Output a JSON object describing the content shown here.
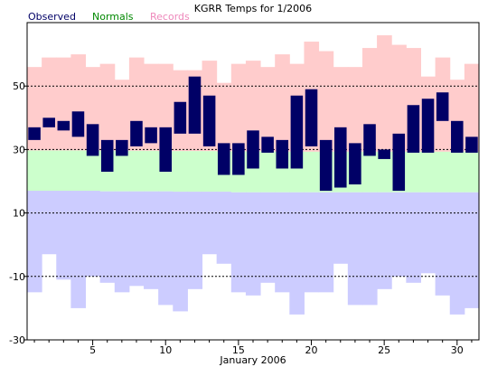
{
  "chart_data": {
    "type": "bar",
    "title": "KGRR Temps for 1/2006",
    "legend": [
      {
        "name": "Observed",
        "color": "#000066"
      },
      {
        "name": "Normals",
        "color": "#008800"
      },
      {
        "name": "Records",
        "color": "#ee88bb"
      }
    ],
    "xlabel": "January 2006",
    "ylabel": "",
    "ylim": [
      -30,
      70
    ],
    "xlim": [
      0.5,
      31.5
    ],
    "x_ticks": [
      5,
      10,
      15,
      20,
      25,
      30
    ],
    "y_ticks": [
      -30,
      -10,
      10,
      30,
      50
    ],
    "gridlines_y": [
      -10,
      10,
      30,
      50
    ],
    "colors": {
      "observed": "#000066",
      "normal_fill": "#ccffcc",
      "record_high_fill": "#ffcccc",
      "record_low_fill": "#ccccff",
      "plot_bg": "#ffffff",
      "grid": "#000000"
    },
    "days": [
      1,
      2,
      3,
      4,
      5,
      6,
      7,
      8,
      9,
      10,
      11,
      12,
      13,
      14,
      15,
      16,
      17,
      18,
      19,
      20,
      21,
      22,
      23,
      24,
      25,
      26,
      27,
      28,
      29,
      30,
      31
    ],
    "observed_high": [
      37,
      40,
      39,
      42,
      38,
      33,
      33,
      39,
      37,
      37,
      45,
      53,
      47,
      32,
      32,
      36,
      34,
      33,
      47,
      49,
      33,
      37,
      32,
      38,
      30,
      35,
      44,
      46,
      48,
      39,
      34
    ],
    "observed_low": [
      33,
      37,
      36,
      34,
      28,
      23,
      28,
      31,
      32,
      23,
      35,
      35,
      31,
      22,
      22,
      24,
      29,
      24,
      24,
      31,
      17,
      18,
      19,
      28,
      27,
      17,
      29,
      29,
      39,
      29,
      29
    ],
    "normal_high": [
      29.7,
      29.7,
      29.7,
      29.7,
      29.7,
      29.6,
      29.6,
      29.6,
      29.6,
      29.5,
      29.5,
      29.5,
      29.5,
      29.4,
      29.4,
      29.4,
      29.4,
      29.3,
      29.3,
      29.3,
      29.3,
      29.3,
      29.3,
      29.3,
      29.3,
      29.3,
      29.3,
      29.3,
      29.3,
      29.3,
      29.3
    ],
    "normal_low": [
      17.0,
      17.0,
      17.0,
      17.0,
      17.0,
      16.8,
      16.8,
      16.8,
      16.8,
      16.8,
      16.7,
      16.7,
      16.7,
      16.7,
      16.5,
      16.5,
      16.5,
      16.5,
      16.5,
      16.5,
      16.5,
      16.5,
      16.5,
      16.5,
      16.5,
      16.5,
      16.5,
      16.5,
      16.5,
      16.5,
      16.5
    ],
    "record_high": [
      56,
      59,
      59,
      60,
      56,
      57,
      52,
      59,
      57,
      57,
      55,
      55,
      58,
      51,
      57,
      58,
      56,
      60,
      57,
      64,
      61,
      56,
      56,
      62,
      66,
      63,
      62,
      53,
      59,
      52,
      57
    ],
    "record_low": [
      -15,
      -3,
      -11,
      -20,
      -10,
      -12,
      -15,
      -13,
      -14,
      -19,
      -21,
      -14,
      -3,
      -6,
      -15,
      -16,
      -12,
      -15,
      -22,
      -15,
      -15,
      -6,
      -19,
      -19,
      -14,
      -10,
      -12,
      -9,
      -16,
      -22,
      -20
    ]
  }
}
